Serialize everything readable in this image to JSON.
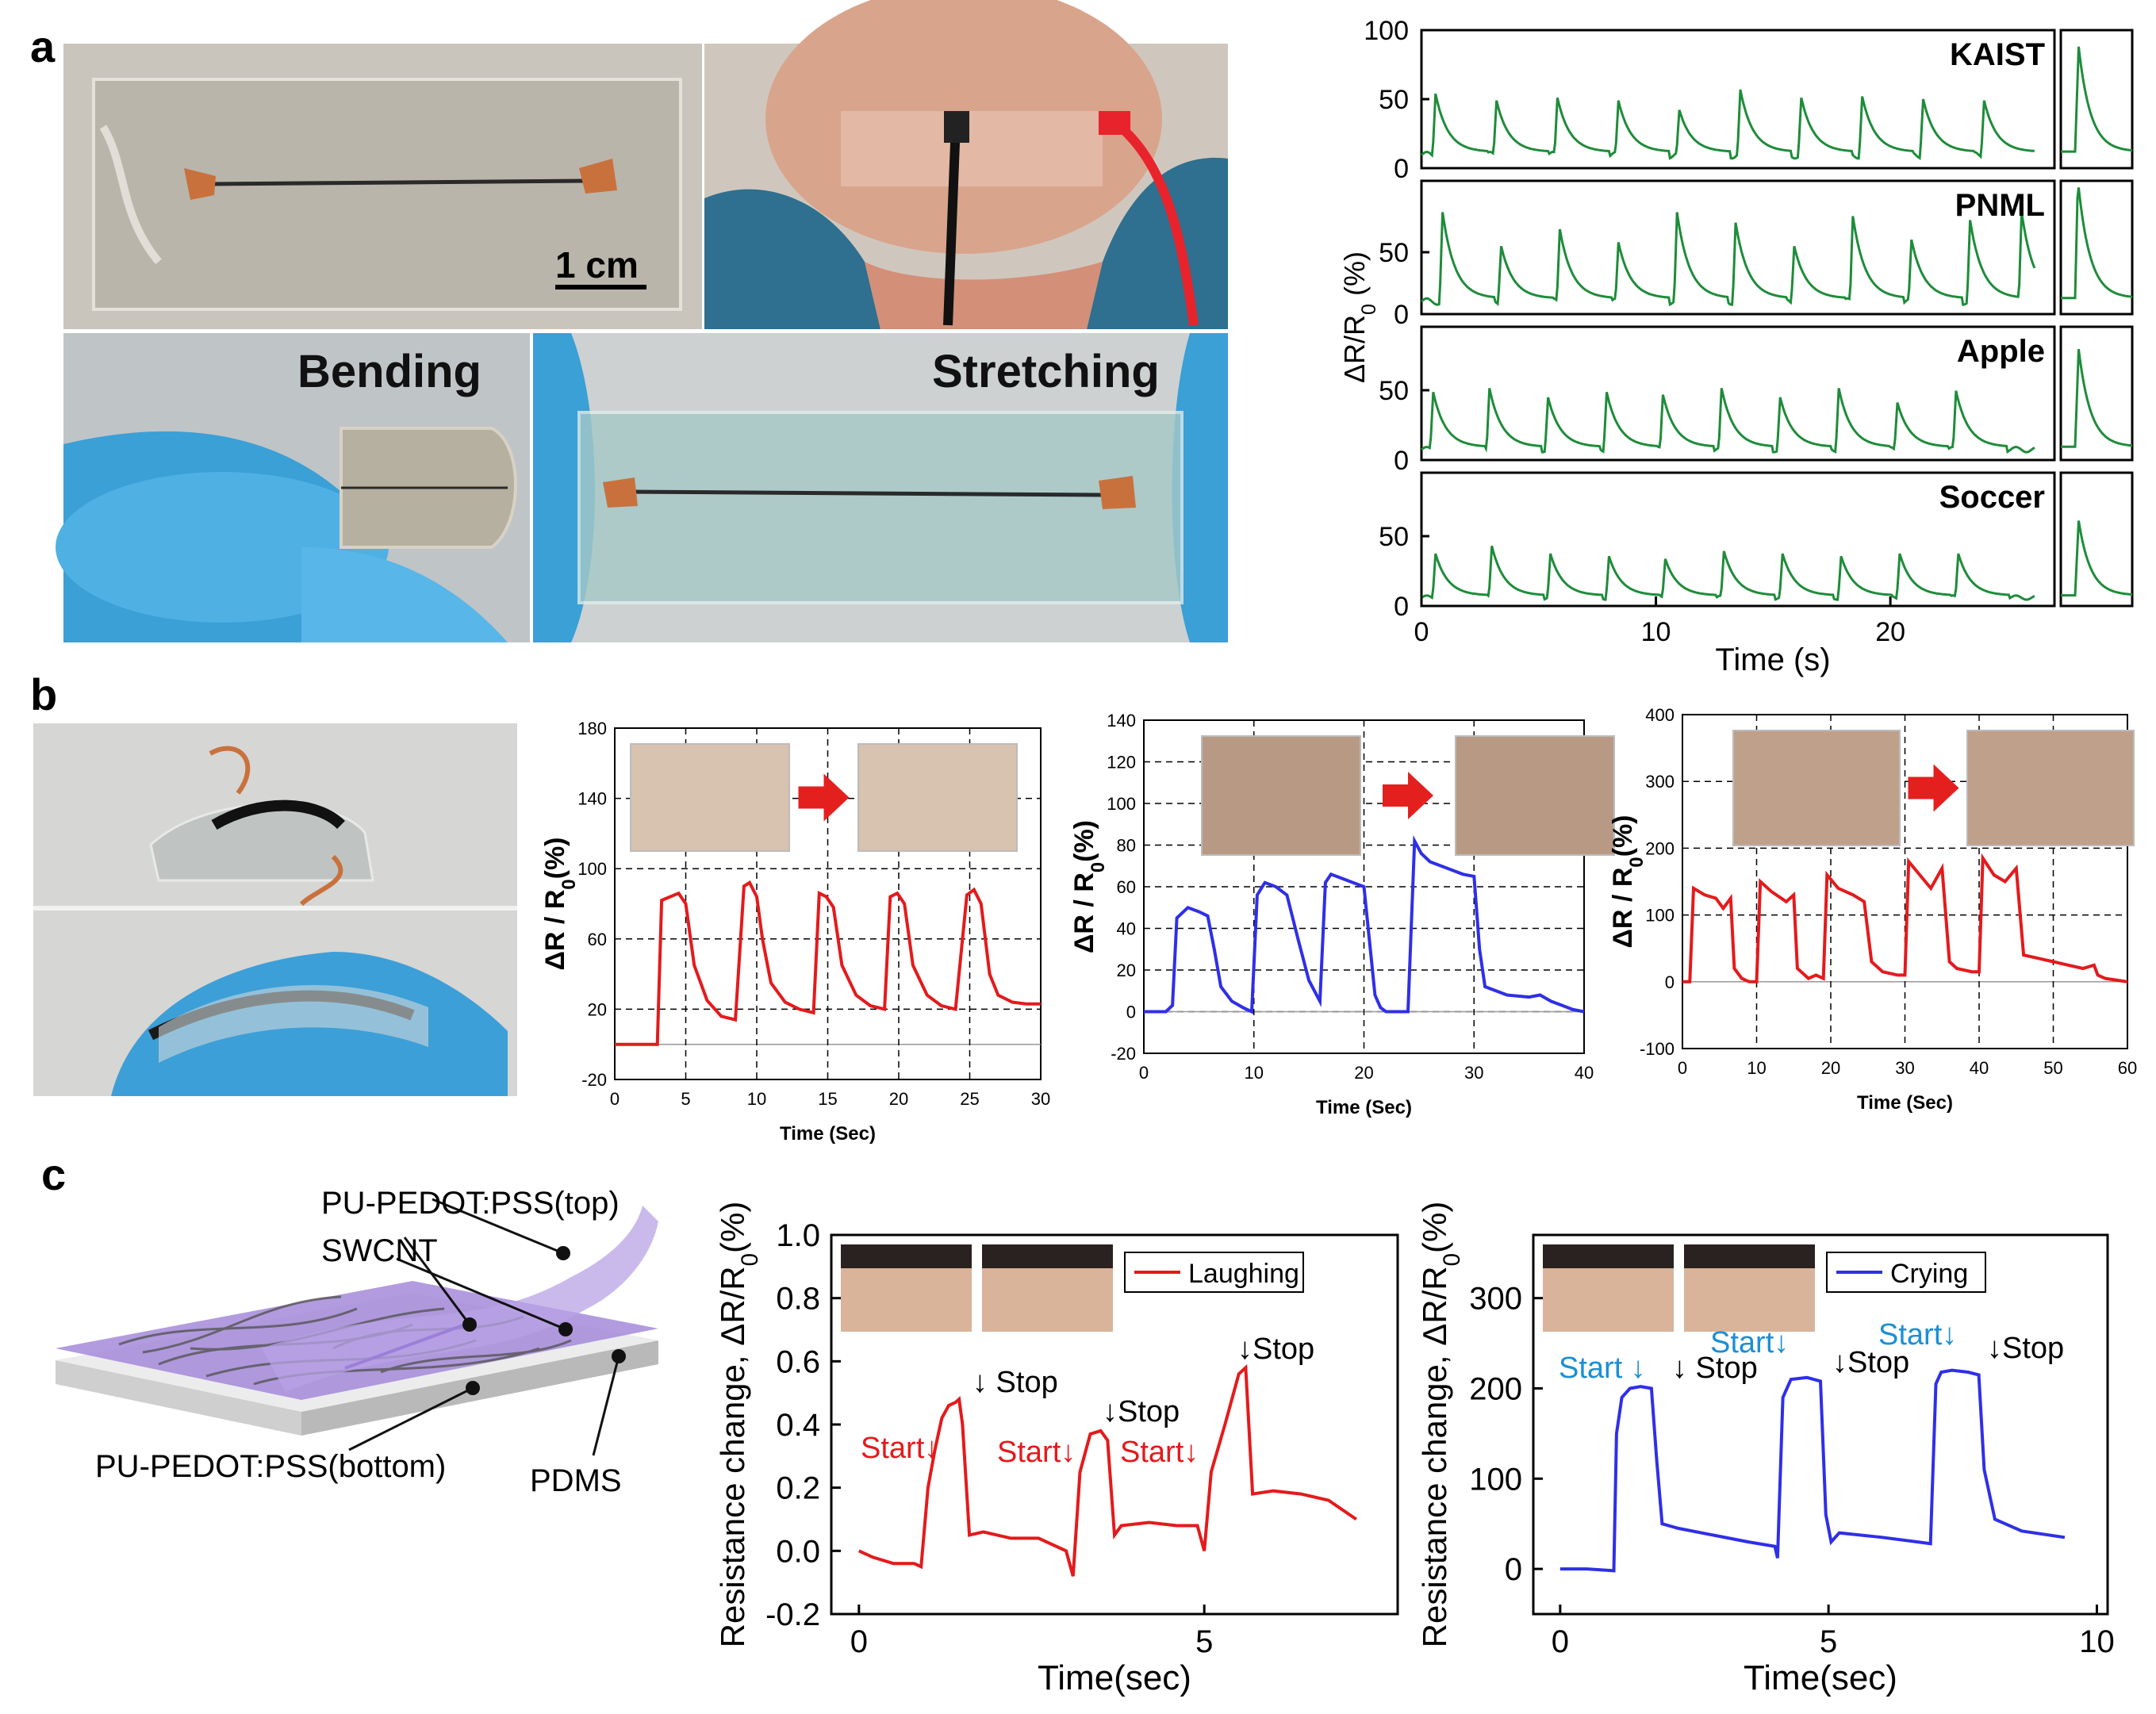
{
  "panels": {
    "a": "a",
    "b": "b",
    "c": "c"
  },
  "photo_labels": {
    "scale_bar": "1 cm",
    "bending": "Bending",
    "stretching": "Stretching"
  },
  "diagram_labels": {
    "top_layer": "PU-PEDOT:PSS(top)",
    "swcnt": "SWCNT",
    "bottom_layer": "PU-PEDOT:PSS(bottom)",
    "substrate": "PDMS"
  },
  "colors": {
    "green": "#1e8c3a",
    "red": "#e41a1c",
    "blue": "#2f2fe8",
    "start_blue": "#1a8fd6",
    "purple": "#9b7fd8"
  },
  "chart_data": [
    {
      "id": "a-speech",
      "type": "line",
      "xlabel": "Time (s)",
      "ylabel": "ΔR/R",
      "ylabel_sub": "0",
      "ylabel_tail": " (%)",
      "xlim": [
        0,
        27
      ],
      "xticks": [
        "0",
        "10",
        "20"
      ],
      "xtick_values": [
        0,
        10,
        20
      ],
      "series": [
        {
          "name": "KAIST",
          "ylim": [
            0,
            100
          ],
          "yticks": [
            "100",
            "50",
            "0"
          ],
          "peak_times": [
            0.6,
            3.2,
            5.8,
            8.4,
            11.0,
            13.6,
            16.2,
            18.8,
            21.4,
            24.0
          ],
          "peak_values": [
            55,
            50,
            52,
            50,
            43,
            58,
            52,
            53,
            51,
            50
          ],
          "baseline": 12
        },
        {
          "name": "PNML",
          "ylim": [
            0,
            100
          ],
          "yticks": [
            "50",
            "0"
          ],
          "peak_times": [
            0.9,
            3.4,
            5.9,
            8.4,
            10.9,
            13.4,
            15.9,
            18.4,
            20.9,
            23.4,
            25.6
          ],
          "peak_values": [
            78,
            52,
            65,
            55,
            78,
            70,
            52,
            75,
            57,
            72,
            78
          ],
          "baseline": 12
        },
        {
          "name": "Apple",
          "ylim": [
            0,
            100
          ],
          "yticks": [
            "50",
            "0"
          ],
          "peak_times": [
            0.5,
            2.9,
            5.4,
            7.9,
            10.3,
            12.8,
            15.3,
            17.8,
            20.3,
            22.8
          ],
          "peak_values": [
            52,
            55,
            48,
            52,
            50,
            55,
            48,
            55,
            44,
            53
          ],
          "baseline": 10
        },
        {
          "name": "Soccer",
          "ylim": [
            0,
            100
          ],
          "yticks": [
            "50",
            "0"
          ],
          "peak_times": [
            0.6,
            3.0,
            5.5,
            8.0,
            10.4,
            12.9,
            15.4,
            17.9,
            20.4,
            22.9
          ],
          "peak_values": [
            40,
            46,
            40,
            38,
            36,
            42,
            40,
            38,
            40,
            40
          ],
          "baseline": 8
        }
      ]
    },
    {
      "id": "b-finger",
      "type": "line",
      "xlabel": "Time (Sec)",
      "ylabel": "ΔR / R",
      "ylabel_sub": "0",
      "ylabel_tail": "(%)",
      "xlim": [
        0,
        30
      ],
      "ylim": [
        -20,
        180
      ],
      "xticks": [
        "0",
        "5",
        "10",
        "15",
        "20",
        "25",
        "30"
      ],
      "xtick_values": [
        0,
        5,
        10,
        15,
        20,
        25,
        30
      ],
      "yticks": [
        "-20",
        "20",
        "60",
        "100",
        "140",
        "180"
      ],
      "ytick_values": [
        -20,
        20,
        60,
        100,
        140,
        180
      ],
      "series": [
        {
          "color": "#e41a1c",
          "x": [
            0,
            2.5,
            3.0,
            3.3,
            4.5,
            5.0,
            5.6,
            6.5,
            7.5,
            8.5,
            9.1,
            9.5,
            10.0,
            10.4,
            11.0,
            12.0,
            13.0,
            14.0,
            14.4,
            14.9,
            15.4,
            16.0,
            17.0,
            18.0,
            19.0,
            19.4,
            19.9,
            20.4,
            21.0,
            22.0,
            23.0,
            24.0,
            24.8,
            25.3,
            25.8,
            26.4,
            27.0,
            28.0,
            29.0,
            30.0
          ],
          "y": [
            0,
            0,
            0,
            82,
            86,
            80,
            45,
            25,
            16,
            14,
            90,
            92,
            84,
            60,
            35,
            24,
            20,
            18,
            86,
            84,
            78,
            45,
            28,
            22,
            20,
            84,
            86,
            80,
            45,
            28,
            22,
            20,
            85,
            88,
            80,
            40,
            28,
            24,
            23,
            23
          ]
        }
      ]
    },
    {
      "id": "b-wrist",
      "type": "line",
      "xlabel": "Time (Sec)",
      "ylabel": "ΔR / R",
      "ylabel_sub": "0",
      "ylabel_tail": "(%)",
      "xlim": [
        0,
        40
      ],
      "ylim": [
        -20,
        140
      ],
      "xticks": [
        "0",
        "10",
        "20",
        "30",
        "40"
      ],
      "xtick_values": [
        0,
        10,
        20,
        30,
        40
      ],
      "yticks": [
        "-20",
        "0",
        "20",
        "40",
        "60",
        "80",
        "100",
        "120",
        "140"
      ],
      "ytick_values": [
        -20,
        0,
        20,
        40,
        60,
        80,
        100,
        120,
        140
      ],
      "series": [
        {
          "color": "#2f2fe8",
          "x": [
            0,
            2.0,
            2.6,
            3.0,
            4.0,
            5.0,
            5.8,
            6.4,
            7.0,
            8.0,
            9.0,
            9.8,
            10.3,
            11.0,
            12.0,
            13.0,
            14.0,
            15.0,
            16.0,
            16.5,
            17.0,
            18.0,
            19.0,
            20.0,
            21.0,
            21.5,
            22.0,
            23.0,
            24.0,
            24.6,
            25.2,
            26.0,
            27.0,
            28.0,
            29.0,
            30.0,
            30.5,
            31.0,
            32.0,
            33.0,
            35.0,
            36.0,
            37.0,
            38.0,
            39.0,
            40.0
          ],
          "y": [
            0,
            0,
            3,
            45,
            50,
            48,
            46,
            30,
            12,
            5,
            2,
            0,
            56,
            62,
            60,
            56,
            35,
            15,
            5,
            62,
            66,
            64,
            62,
            60,
            8,
            2,
            0,
            0,
            0,
            82,
            76,
            72,
            70,
            68,
            66,
            65,
            30,
            12,
            10,
            8,
            7,
            8,
            5,
            3,
            1,
            0
          ]
        }
      ]
    },
    {
      "id": "b-elbow",
      "type": "line",
      "xlabel": "Time (Sec)",
      "ylabel": "ΔR / R",
      "ylabel_sub": "0",
      "ylabel_tail": "(%)",
      "xlim": [
        0,
        60
      ],
      "ylim": [
        -100,
        400
      ],
      "xticks": [
        "0",
        "10",
        "20",
        "30",
        "40",
        "50",
        "60"
      ],
      "xtick_values": [
        0,
        10,
        20,
        30,
        40,
        50,
        60
      ],
      "yticks": [
        "-100",
        "0",
        "100",
        "200",
        "300",
        "400"
      ],
      "ytick_values": [
        -100,
        0,
        100,
        200,
        300,
        400
      ],
      "series": [
        {
          "color": "#e41a1c",
          "x": [
            0,
            1.0,
            1.5,
            3.0,
            4.5,
            5.5,
            6.5,
            7.0,
            8.0,
            9.0,
            10.0,
            10.5,
            12.0,
            14.0,
            15.0,
            15.5,
            17.0,
            18.0,
            19.0,
            19.5,
            21.0,
            23.0,
            24.5,
            25.5,
            27.0,
            29.0,
            30.0,
            30.5,
            32.0,
            33.5,
            35.0,
            36.0,
            37.0,
            39.0,
            40.0,
            40.5,
            42.0,
            43.5,
            45.0,
            46.0,
            48.0,
            50.0,
            52.0,
            54.0,
            55.5,
            56.0,
            57.0,
            60.0
          ],
          "y": [
            0,
            0,
            140,
            130,
            125,
            110,
            125,
            20,
            5,
            0,
            0,
            150,
            135,
            120,
            130,
            20,
            5,
            10,
            5,
            160,
            140,
            130,
            120,
            30,
            15,
            10,
            10,
            180,
            160,
            140,
            170,
            30,
            20,
            15,
            15,
            185,
            160,
            150,
            170,
            40,
            35,
            30,
            25,
            20,
            25,
            10,
            5,
            0
          ]
        }
      ]
    },
    {
      "id": "c-laughing",
      "type": "line",
      "xlabel": "Time(sec)",
      "ylabel": "Resistance change, ΔR/R",
      "ylabel_sub": "0",
      "ylabel_tail": "(%)",
      "xlim": [
        -0.4,
        7.8
      ],
      "ylim": [
        -0.2,
        1.0
      ],
      "xticks": [
        "0",
        "5"
      ],
      "xtick_values": [
        0,
        5
      ],
      "yticks": [
        "-0.2",
        "0.0",
        "0.2",
        "0.4",
        "0.6",
        "0.8",
        "1.0"
      ],
      "ytick_values": [
        -0.2,
        0.0,
        0.2,
        0.4,
        0.6,
        0.8,
        1.0
      ],
      "legend": "Laughing",
      "annotations": {
        "start": "Start↓",
        "stop": "↓ Stop",
        "stop2": "↓Stop"
      },
      "series": [
        {
          "name": "Laughing",
          "color": "#e41a1c",
          "x": [
            0,
            0.2,
            0.5,
            0.8,
            0.9,
            1.0,
            1.1,
            1.2,
            1.3,
            1.4,
            1.45,
            1.5,
            1.6,
            1.8,
            2.2,
            2.6,
            3.0,
            3.1,
            3.2,
            3.35,
            3.5,
            3.6,
            3.7,
            3.8,
            4.2,
            4.6,
            4.9,
            5.0,
            5.1,
            5.3,
            5.5,
            5.6,
            5.7,
            6.0,
            6.4,
            6.8,
            7.2
          ],
          "y": [
            0.0,
            -0.02,
            -0.04,
            -0.04,
            -0.05,
            0.2,
            0.32,
            0.42,
            0.46,
            0.47,
            0.48,
            0.4,
            0.05,
            0.06,
            0.04,
            0.04,
            0.0,
            -0.08,
            0.25,
            0.37,
            0.38,
            0.35,
            0.05,
            0.08,
            0.09,
            0.08,
            0.08,
            0.0,
            0.25,
            0.4,
            0.56,
            0.58,
            0.18,
            0.19,
            0.18,
            0.16,
            0.1
          ]
        }
      ]
    },
    {
      "id": "c-crying",
      "type": "line",
      "xlabel": "Time(sec)",
      "ylabel": "Resistance change, ΔR/R",
      "ylabel_sub": "0",
      "ylabel_tail": "(%)",
      "xlim": [
        -0.5,
        10.2
      ],
      "ylim": [
        -50,
        370
      ],
      "xticks": [
        "0",
        "5",
        "10"
      ],
      "xtick_values": [
        0,
        5,
        10
      ],
      "yticks": [
        "0",
        "100",
        "200",
        "300"
      ],
      "ytick_values": [
        0,
        100,
        200,
        300
      ],
      "legend": "Crying",
      "annotations": {
        "start": "Start ↓",
        "start2": "Start↓",
        "stop": "↓ Stop",
        "stop2": "↓Stop"
      },
      "series": [
        {
          "name": "Crying",
          "color": "#2f2fe8",
          "x": [
            0,
            0.5,
            1.0,
            1.05,
            1.15,
            1.3,
            1.5,
            1.7,
            1.8,
            1.9,
            2.2,
            2.8,
            3.5,
            4.0,
            4.05,
            4.15,
            4.3,
            4.6,
            4.85,
            4.95,
            5.05,
            5.2,
            6.0,
            6.9,
            7.0,
            7.1,
            7.3,
            7.6,
            7.8,
            7.9,
            8.1,
            8.6,
            9.4
          ],
          "y": [
            0,
            0,
            -2,
            150,
            190,
            200,
            202,
            200,
            120,
            50,
            45,
            38,
            30,
            25,
            12,
            190,
            210,
            212,
            208,
            60,
            30,
            40,
            35,
            28,
            205,
            218,
            220,
            218,
            215,
            110,
            55,
            42,
            35
          ]
        }
      ]
    }
  ]
}
